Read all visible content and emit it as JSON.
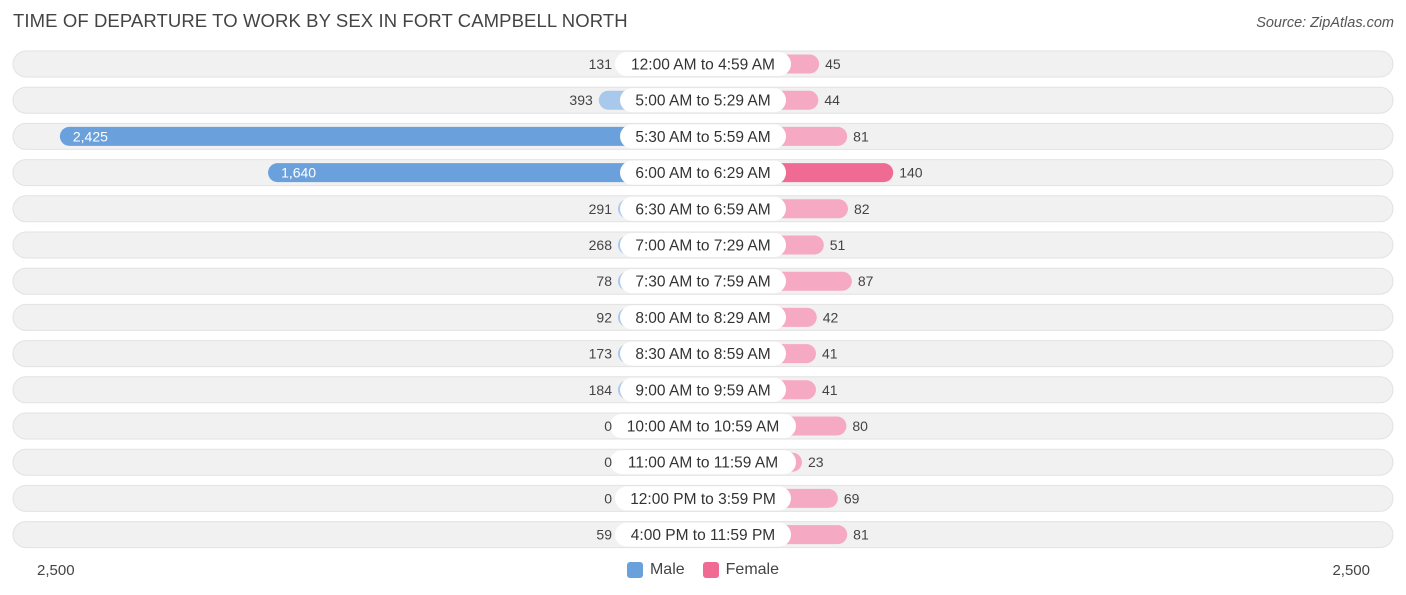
{
  "title": "TIME OF DEPARTURE TO WORK BY SEX IN FORT CAMPBELL NORTH",
  "source": "Source: ZipAtlas.com",
  "colors": {
    "male_light": "#a8c8ec",
    "male_strong": "#6aa0dc",
    "female_light": "#f5a9c2",
    "female_strong": "#f06b94",
    "row_bg": "#f1f1f1"
  },
  "legend": {
    "male": "Male",
    "female": "Female"
  },
  "axis": {
    "left_label": "2,500",
    "right_label": "2,500"
  },
  "chart_data": {
    "type": "bar",
    "orientation": "horizontal-diverging",
    "categories": [
      "12:00 AM to 4:59 AM",
      "5:00 AM to 5:29 AM",
      "5:30 AM to 5:59 AM",
      "6:00 AM to 6:29 AM",
      "6:30 AM to 6:59 AM",
      "7:00 AM to 7:29 AM",
      "7:30 AM to 7:59 AM",
      "8:00 AM to 8:29 AM",
      "8:30 AM to 8:59 AM",
      "9:00 AM to 9:59 AM",
      "10:00 AM to 10:59 AM",
      "11:00 AM to 11:59 AM",
      "12:00 PM to 3:59 PM",
      "4:00 PM to 11:59 PM"
    ],
    "series": [
      {
        "name": "Male",
        "values": [
          131,
          393,
          2425,
          1640,
          291,
          268,
          78,
          92,
          173,
          184,
          0,
          0,
          0,
          59
        ],
        "labels": [
          "131",
          "393",
          "2,425",
          "1,640",
          "291",
          "268",
          "78",
          "92",
          "173",
          "184",
          "0",
          "0",
          "0",
          "59"
        ]
      },
      {
        "name": "Female",
        "values": [
          45,
          44,
          81,
          140,
          82,
          51,
          87,
          42,
          41,
          41,
          80,
          23,
          69,
          81
        ],
        "labels": [
          "45",
          "44",
          "81",
          "140",
          "82",
          "51",
          "87",
          "42",
          "41",
          "41",
          "80",
          "23",
          "69",
          "81"
        ]
      }
    ],
    "xlim": [
      -2500,
      2500
    ],
    "legend_position": "bottom-center"
  }
}
